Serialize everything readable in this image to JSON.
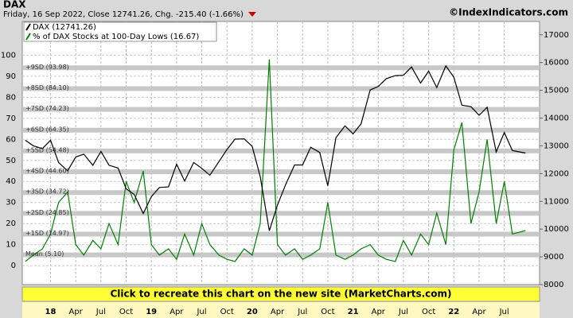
{
  "chart_data": {
    "type": "line",
    "title": "DAX",
    "subtitle": "Friday, 16 Sep 2022, Close 12741.26, Chg. -215.40 (-1.66%)",
    "source": "©IndexIndicators.com",
    "banner": "Click to recreate this chart on the new site (MarketCharts.com)",
    "grid": true,
    "x": [
      2017.75,
      2017.83,
      2017.92,
      2018.0,
      2018.08,
      2018.17,
      2018.25,
      2018.33,
      2018.42,
      2018.5,
      2018.58,
      2018.67,
      2018.75,
      2018.83,
      2018.92,
      2019.0,
      2019.08,
      2019.17,
      2019.25,
      2019.33,
      2019.42,
      2019.5,
      2019.58,
      2019.67,
      2019.75,
      2019.83,
      2019.92,
      2020.0,
      2020.08,
      2020.17,
      2020.25,
      2020.33,
      2020.42,
      2020.5,
      2020.58,
      2020.67,
      2020.75,
      2020.83,
      2020.92,
      2021.0,
      2021.08,
      2021.17,
      2021.25,
      2021.33,
      2021.42,
      2021.5,
      2021.58,
      2021.67,
      2021.75,
      2021.83,
      2021.92,
      2022.0,
      2022.08,
      2022.17,
      2022.25,
      2022.33,
      2022.42,
      2022.5,
      2022.58,
      2022.71
    ],
    "series": [
      {
        "name": "DAX (12741.26)",
        "color": "#000000",
        "axis": "y2",
        "values": [
          13200,
          13000,
          12900,
          13200,
          12400,
          12100,
          12600,
          12700,
          12300,
          12800,
          12300,
          12200,
          11450,
          11250,
          10560,
          11170,
          11500,
          11520,
          12340,
          11730,
          12400,
          12190,
          11940,
          12430,
          12870,
          13240,
          13250,
          12980,
          11890,
          9940,
          10860,
          11590,
          12310,
          12310,
          12950,
          12760,
          11560,
          13290,
          13720,
          13430,
          13790,
          15010,
          15140,
          15420,
          15530,
          15540,
          15840,
          15260,
          15690,
          15100,
          15880,
          15470,
          14460,
          14410,
          14100,
          14390,
          12780,
          13480,
          12830,
          12741.26
        ]
      },
      {
        "name": "% of DAX Stocks at 100-Day Lows (16.67)",
        "color": "#008000",
        "values": [
          2,
          5,
          8,
          15,
          30,
          35,
          10,
          5,
          12,
          8,
          20,
          10,
          40,
          30,
          45,
          10,
          5,
          8,
          3,
          15,
          5,
          20,
          10,
          5,
          3,
          2,
          8,
          5,
          20,
          98,
          10,
          5,
          8,
          3,
          5,
          8,
          30,
          5,
          3,
          5,
          8,
          10,
          5,
          3,
          2,
          12,
          5,
          15,
          10,
          25,
          10,
          55,
          68,
          20,
          35,
          60,
          20,
          40,
          15,
          16.67
        ]
      }
    ],
    "xlim": [
      2017.72,
      2022.85
    ],
    "xticks": [
      {
        "value": 2018,
        "label": "18"
      },
      {
        "value": 2018.25,
        "label": "Apr"
      },
      {
        "value": 2018.5,
        "label": "Jul"
      },
      {
        "value": 2018.75,
        "label": "Oct"
      },
      {
        "value": 2019,
        "label": "19"
      },
      {
        "value": 2019.25,
        "label": "Apr"
      },
      {
        "value": 2019.5,
        "label": "Jul"
      },
      {
        "value": 2019.75,
        "label": "Oct"
      },
      {
        "value": 2020,
        "label": "20"
      },
      {
        "value": 2020.25,
        "label": "Apr"
      },
      {
        "value": 2020.5,
        "label": "Jul"
      },
      {
        "value": 2020.75,
        "label": "Oct"
      },
      {
        "value": 2021,
        "label": "21"
      },
      {
        "value": 2021.25,
        "label": "Apr"
      },
      {
        "value": 2021.5,
        "label": "Jul"
      },
      {
        "value": 2021.75,
        "label": "Oct"
      },
      {
        "value": 2022,
        "label": "22"
      },
      {
        "value": 2022.25,
        "label": "Apr"
      },
      {
        "value": 2022.5,
        "label": "Jul"
      }
    ],
    "ylim": [
      -9,
      116
    ],
    "yticks": [
      0,
      10,
      20,
      30,
      40,
      50,
      60,
      70,
      80,
      90,
      100
    ],
    "y2lim": [
      8000,
      17480
    ],
    "y2ticks": [
      8000,
      9000,
      10000,
      11000,
      12000,
      13000,
      14000,
      15000,
      16000,
      17000
    ],
    "bands": [
      {
        "value": 93.98,
        "label": "+9SD (93.98)"
      },
      {
        "value": 84.1,
        "label": "+8SD (84.10)"
      },
      {
        "value": 74.23,
        "label": "+7SD (74.23)"
      },
      {
        "value": 64.35,
        "label": "+6SD (64.35)"
      },
      {
        "value": 54.48,
        "label": "+5SD (54.48)"
      },
      {
        "value": 44.6,
        "label": "+4SD (44.60)"
      },
      {
        "value": 34.72,
        "label": "+3SD (34.72)"
      },
      {
        "value": 24.85,
        "label": "+2SD (24.85)"
      },
      {
        "value": 14.97,
        "label": "+1SD (14.97)"
      },
      {
        "value": 5.1,
        "label": "Mean (5.10)"
      }
    ]
  }
}
